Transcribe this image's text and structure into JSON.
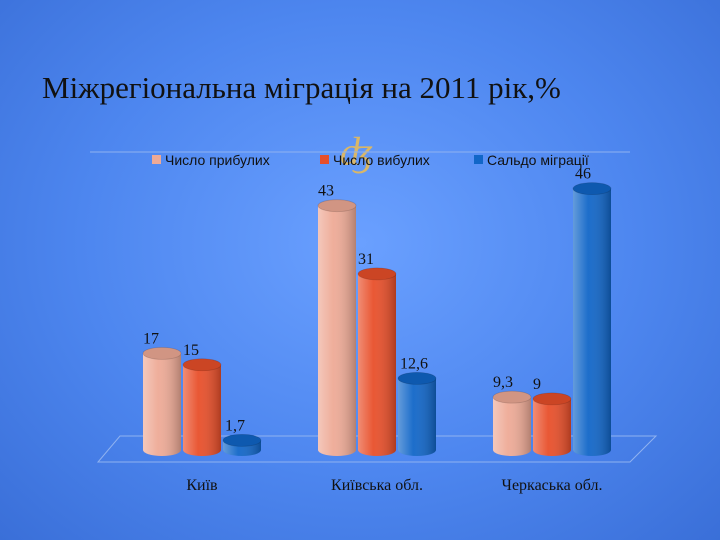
{
  "slide": {
    "title": "Міжрегіональна міграція на 2011 рік,%",
    "flourish": "ʤ"
  },
  "chart_data": {
    "type": "bar",
    "categories": [
      "Київ",
      "Київська обл.",
      "Черкаська обл."
    ],
    "series": [
      {
        "name": "Число прибулих",
        "values": [
          17,
          43,
          9.3
        ],
        "labels": [
          "17",
          "43",
          "9,3"
        ],
        "color": "#eeaa96"
      },
      {
        "name": "Число вибулих",
        "values": [
          15,
          31,
          9
        ],
        "labels": [
          "15",
          "31",
          "9"
        ],
        "color": "#e84f2a"
      },
      {
        "name": "Сальдо міграції",
        "values": [
          1.7,
          12.6,
          46
        ],
        "labels": [
          "1,7",
          "12,6",
          "46"
        ],
        "color": "#1166c8"
      }
    ],
    "ylim": [
      0,
      48
    ],
    "legend": "top",
    "grid": false
  }
}
